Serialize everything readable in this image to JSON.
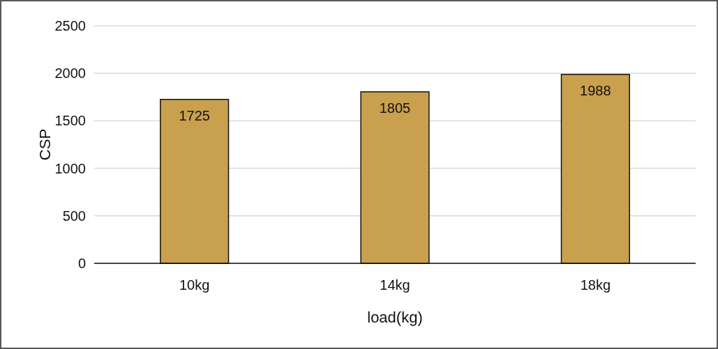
{
  "chart_data": {
    "type": "bar",
    "xlabel": "load(kg)",
    "ylabel": "CSP",
    "categories": [
      "10kg",
      "14kg",
      "18kg"
    ],
    "values": [
      1725,
      1805,
      1988
    ],
    "color": "#c9a04e",
    "ylim": [
      0,
      2500
    ],
    "yticks": [
      0,
      500,
      1000,
      1500,
      2000,
      2500
    ],
    "grid": "y",
    "data_labels": true
  }
}
